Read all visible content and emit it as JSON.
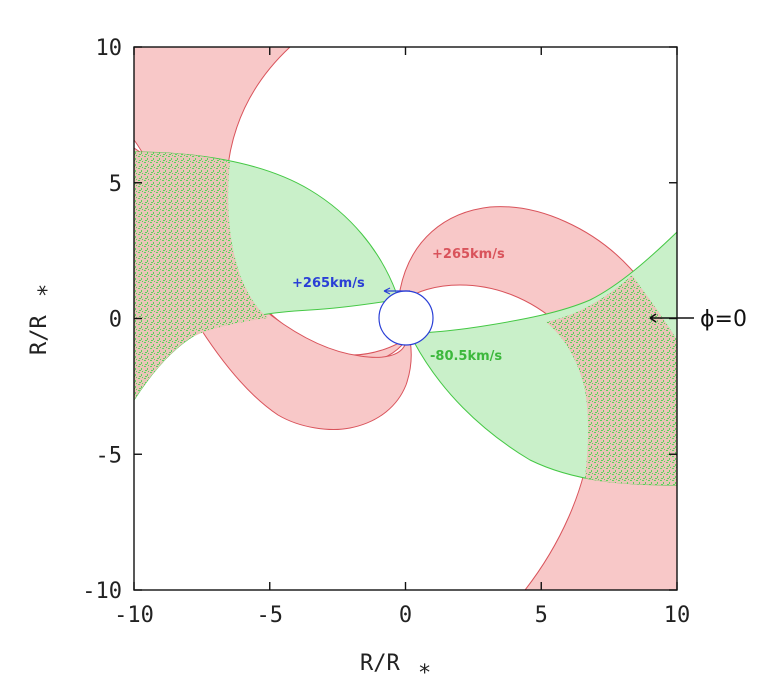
{
  "chart_data": {
    "type": "area",
    "title": "",
    "xlabel": "R/R",
    "xlabel_sub": "*",
    "ylabel": "R/R",
    "ylabel_sub": "*",
    "xlim": [
      -10,
      10
    ],
    "ylim": [
      -10,
      10
    ],
    "xticks": [
      "-10",
      "-5",
      "0",
      "5",
      "10"
    ],
    "yticks": [
      "10",
      "5",
      "0",
      "-5",
      "-10"
    ],
    "grid": false,
    "colors": {
      "red_fill": "#f9c8c8",
      "red_edge": "#d9535b",
      "green_fill": "#c8f0c8",
      "green_edge": "#45c845",
      "overlap_fill": "#e6c6b6",
      "blue": "#2a3fd6"
    },
    "stellar_disk": {
      "x": 0,
      "y": 0,
      "radius": 1
    },
    "regions": [
      {
        "color": "red",
        "label": "+265km/s",
        "polygon": [
          [
            -1.0,
            0.2
          ],
          [
            -2.5,
            1.5
          ],
          [
            -3.6,
            2.9
          ],
          [
            -5.5,
            5.2
          ],
          [
            -6.4,
            7.5
          ],
          [
            -6.0,
            10.0
          ],
          [
            -5.4,
            10.3
          ],
          [
            -4.4,
            10.0
          ],
          [
            -5.6,
            7.8
          ],
          [
            -6.1,
            5.8
          ],
          [
            -5.6,
            3.8
          ],
          [
            -4.3,
            1.7
          ],
          [
            -2.3,
            -0.2
          ],
          [
            0.0,
            -1.2
          ],
          [
            1.7,
            -1.3
          ],
          [
            3.6,
            -0.7
          ],
          [
            5.6,
            0.4
          ],
          [
            7.1,
            1.3
          ],
          [
            8.2,
            1.9
          ],
          [
            9.5,
            2.8
          ],
          [
            10.0,
            3.2
          ],
          [
            10.0,
            -10.0
          ],
          [
            7.0,
            -10.0
          ],
          [
            5.6,
            -10.0
          ],
          [
            4.3,
            -8.4
          ],
          [
            5.7,
            -5.8
          ],
          [
            6.3,
            -3.0
          ],
          [
            5.3,
            -0.5
          ],
          [
            3.5,
            1.2
          ],
          [
            1.6,
            1.7
          ],
          [
            0.0,
            1.3
          ]
        ],
        "polygon_lower": [
          [
            -0.2,
            -1.3
          ],
          [
            -1.8,
            -1.3
          ],
          [
            -2.3,
            -1.4
          ],
          [
            -4.0,
            -0.9
          ],
          [
            -5.5,
            0.0
          ],
          [
            -7.6,
            2.0
          ],
          [
            -10.0,
            5.0
          ],
          [
            -10.0,
            10.0
          ],
          [
            -9.8,
            10.0
          ],
          [
            -9.9,
            9.2
          ],
          [
            -8.3,
            4.9
          ],
          [
            -8.0,
            2.3
          ],
          [
            -7.5,
            -1.3
          ],
          [
            -6.3,
            -2.5
          ],
          [
            -5.0,
            -3.6
          ],
          [
            -3.2,
            -4.2
          ],
          [
            -1.8,
            -4.0
          ],
          [
            -0.3,
            -3.0
          ],
          [
            0.2,
            -1.5
          ]
        ],
        "outer_lower": [
          [
            -10.0,
            -4.9
          ],
          [
            -7.2,
            -2.3
          ],
          [
            -5.4,
            -3.3
          ],
          [
            -3.5,
            -4.1
          ],
          [
            -1.8,
            -4.0
          ],
          [
            -0.4,
            -3.0
          ],
          [
            0.1,
            -1.2
          ],
          [
            0.0,
            -1.0
          ],
          [
            -1.5,
            -1.2
          ],
          [
            -2.3,
            -1.3
          ],
          [
            -4.5,
            -0.8
          ],
          [
            -6.0,
            0.6
          ],
          [
            -7.4,
            2.4
          ],
          [
            -9.3,
            8.9
          ],
          [
            -10.0,
            9.3
          ]
        ]
      },
      {
        "color": "green",
        "label": "-80.5km/s",
        "polygon": [
          [
            -10.0,
            6.1
          ],
          [
            -8.0,
            6.0
          ],
          [
            -6.2,
            5.6
          ],
          [
            -4.6,
            4.8
          ],
          [
            -3.0,
            3.7
          ],
          [
            -1.6,
            2.1
          ],
          [
            -0.6,
            0.8
          ],
          [
            0.0,
            0.1
          ],
          [
            -1.0,
            0.6
          ],
          [
            -2.4,
            0.8
          ],
          [
            -4.1,
            0.2
          ],
          [
            -6.0,
            -0.2
          ],
          [
            -8.0,
            -1.3
          ],
          [
            -10.0,
            -3.2
          ]
        ]
      },
      {
        "color": "green",
        "label": "",
        "polygon": [
          [
            0.1,
            -0.7
          ],
          [
            0.6,
            -1.6
          ],
          [
            1.6,
            -2.9
          ],
          [
            3.2,
            -4.4
          ],
          [
            4.9,
            -5.5
          ],
          [
            6.8,
            -6.0
          ],
          [
            8.6,
            -6.1
          ],
          [
            10.0,
            -6.1
          ],
          [
            10.0,
            3.2
          ],
          [
            8.4,
            1.9
          ],
          [
            6.8,
            0.7
          ],
          [
            5.0,
            0.2
          ],
          [
            3.6,
            -0.3
          ],
          [
            1.7,
            -0.3
          ],
          [
            0.6,
            -0.6
          ]
        ]
      }
    ],
    "annotations": [
      {
        "text": "+265km/s",
        "color": "red",
        "x": 1.0,
        "y": 2.2
      },
      {
        "text": "+265km/s",
        "color": "blue",
        "x": -4.2,
        "y": 1.2
      },
      {
        "text": "-80.5km/s",
        "color": "green",
        "x": 0.8,
        "y": -1.4
      }
    ],
    "marker": {
      "text": "ϕ=0",
      "x": 10,
      "y": 0
    }
  }
}
